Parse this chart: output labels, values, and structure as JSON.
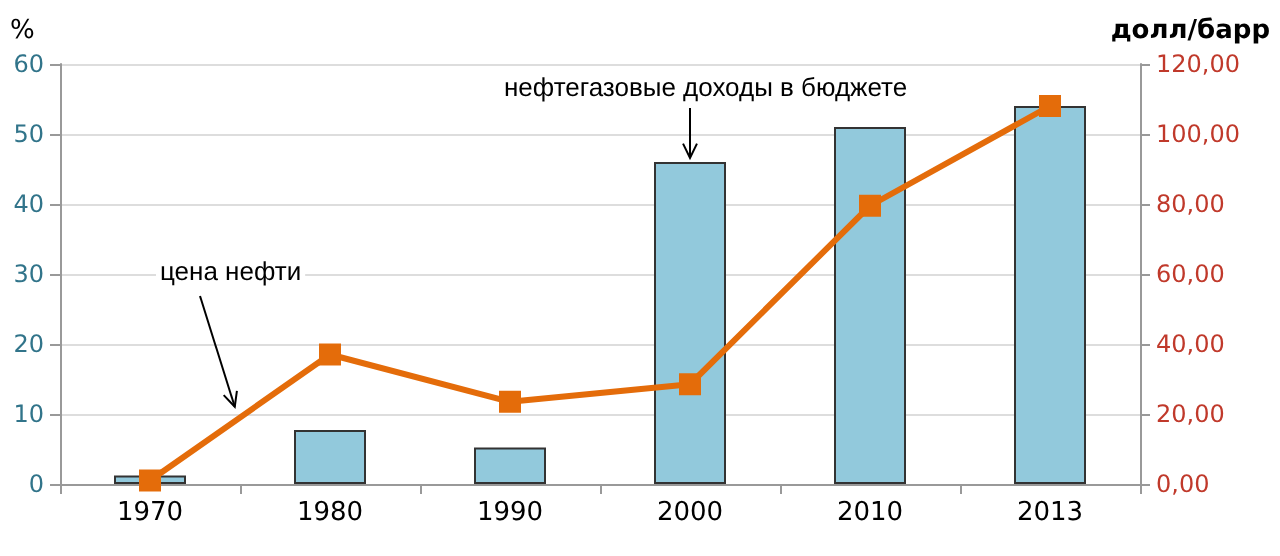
{
  "chart_data": {
    "type": "bar",
    "ylabel": "%",
    "y2label": "долл/барр",
    "categories": [
      "1970",
      "1980",
      "1990",
      "2000",
      "2010",
      "2013"
    ],
    "series": [
      {
        "color": "#92c9dc",
        "values": [
          1.2,
          7.7,
          5.2,
          46,
          51,
          54
        ]
      },
      {
        "type": "line",
        "axis": "y2",
        "color": "#e46c0a",
        "values": [
          1,
          37,
          23.5,
          28.5,
          79.5,
          108
        ]
      }
    ],
    "ylim": [
      0,
      60
    ],
    "yticks": [
      0,
      10,
      20,
      30,
      40,
      50,
      60
    ],
    "y2lim": [
      0,
      120
    ],
    "y2ticks": [
      {
        "value": 0,
        "label": "0,00"
      },
      {
        "value": 20,
        "label": "20,00"
      },
      {
        "value": 40,
        "label": "40,00"
      },
      {
        "value": 60,
        "label": "60,00"
      },
      {
        "value": 80,
        "label": "80,00"
      },
      {
        "value": 100,
        "label": "100,00"
      },
      {
        "value": 120,
        "label": "120,00"
      }
    ],
    "grid": "y",
    "marker": "square",
    "line_style": "solid",
    "annotations": [
      {
        "text": "нефтегазовые доходы в бюджете",
        "x": "2000",
        "y": 46
      },
      {
        "text": "цена нефти",
        "y": 10.5
      }
    ]
  }
}
